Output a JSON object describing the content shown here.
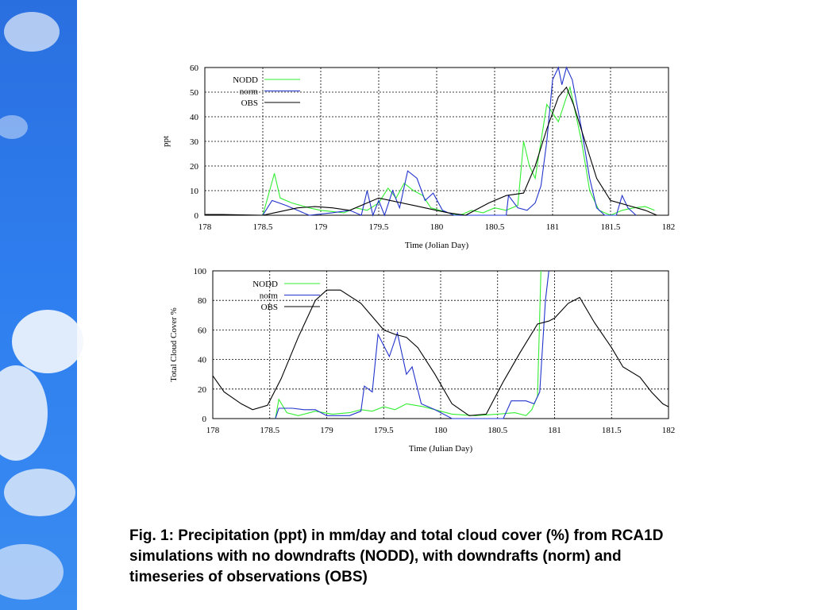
{
  "chart_data": [
    {
      "type": "line",
      "ylabel": "ppt",
      "xlabel": "Time (Jolian Day)",
      "xlim": [
        178,
        182
      ],
      "xticks": [
        178,
        178.5,
        179,
        179.5,
        180,
        180.5,
        181,
        181.5,
        182
      ],
      "ylim": [
        0,
        60
      ],
      "yticks": [
        0,
        10,
        20,
        30,
        40,
        50,
        60
      ],
      "grid": true,
      "legend": "upper left",
      "series": [
        {
          "name": "NODD",
          "color": "#33ee33",
          "x": [
            178.5,
            178.6,
            178.65,
            178.75,
            178.9,
            179.0,
            179.2,
            179.3,
            179.4,
            179.5,
            179.58,
            179.65,
            179.72,
            179.8,
            179.88,
            179.95,
            180.1,
            180.2,
            180.3,
            180.4,
            180.5,
            180.6,
            180.7,
            180.75,
            180.8,
            180.85,
            180.9,
            180.95,
            181.05,
            181.12,
            181.15,
            181.25,
            181.32,
            181.4,
            181.5,
            181.6,
            181.7,
            181.8,
            181.88
          ],
          "values": [
            0,
            17,
            7,
            5,
            3,
            2,
            1,
            3,
            2,
            5,
            11,
            7,
            13,
            10,
            8,
            3,
            1,
            0,
            2,
            1,
            3,
            2,
            4,
            30,
            20,
            15,
            30,
            45,
            38,
            48,
            52,
            30,
            10,
            2,
            0,
            2,
            3,
            3.5,
            2
          ]
        },
        {
          "name": "norm",
          "color": "#2233cc",
          "x": [
            178.5,
            178.58,
            178.7,
            178.8,
            178.9,
            179.1,
            179.25,
            179.35,
            179.4,
            179.45,
            179.5,
            179.55,
            179.62,
            179.68,
            179.75,
            179.83,
            179.9,
            179.97,
            180.05,
            180.15,
            180.6,
            180.62,
            180.7,
            180.78,
            180.85,
            180.9,
            180.95,
            181.0,
            181.05,
            181.08,
            181.12,
            181.17,
            181.25,
            181.32,
            181.38,
            181.45,
            181.55,
            181.6,
            181.65,
            181.72
          ],
          "values": [
            0,
            6,
            4,
            2,
            0,
            1,
            2,
            0,
            10,
            0,
            6,
            0,
            10,
            3,
            18,
            15,
            6,
            9,
            2,
            0,
            0,
            8,
            3,
            2,
            5,
            12,
            30,
            55,
            60,
            53,
            60,
            55,
            35,
            15,
            3,
            0,
            0,
            8,
            3,
            0
          ]
        },
        {
          "name": "OBS",
          "color": "#000000",
          "x": [
            178,
            178.15,
            178.5,
            178.6,
            178.8,
            178.95,
            179.1,
            179.25,
            179.4,
            179.5,
            179.6,
            179.8,
            179.95,
            180.1,
            180.25,
            180.45,
            180.6,
            180.75,
            180.85,
            180.95,
            181.05,
            181.12,
            181.18,
            181.28,
            181.38,
            181.5,
            181.65,
            181.8,
            181.9
          ],
          "values": [
            0.3,
            0.3,
            0,
            1,
            3,
            3.5,
            3,
            2,
            5,
            7,
            6,
            4,
            2.5,
            1,
            0,
            5,
            8,
            9,
            20,
            35,
            48,
            52,
            45,
            30,
            15,
            6,
            4,
            2,
            0
          ]
        }
      ]
    },
    {
      "type": "line",
      "ylabel": "Total Cloud Cover %",
      "xlabel": "Time (Julian Day)",
      "xlim": [
        178,
        182
      ],
      "xticks": [
        178,
        178.5,
        179,
        179.5,
        180,
        180.5,
        181,
        181.5,
        182
      ],
      "ylim": [
        0,
        100
      ],
      "yticks": [
        0,
        20,
        40,
        60,
        80,
        100
      ],
      "grid": true,
      "legend": "upper left",
      "series": [
        {
          "name": "NODD",
          "color": "#33ee33",
          "x": [
            178.55,
            178.58,
            178.65,
            178.75,
            178.9,
            179.05,
            179.2,
            179.3,
            179.4,
            179.5,
            179.6,
            179.7,
            179.85,
            179.95,
            180.1,
            180.3,
            180.5,
            180.65,
            180.75,
            180.8,
            180.85,
            180.88
          ],
          "values": [
            0,
            13,
            4,
            2,
            5,
            3,
            4,
            6,
            5,
            8,
            6,
            10,
            8,
            6,
            3,
            2,
            3,
            4,
            2,
            6,
            15,
            100
          ]
        },
        {
          "name": "norm",
          "color": "#2233cc",
          "x": [
            178.55,
            178.58,
            178.7,
            178.8,
            178.9,
            179.0,
            179.2,
            179.3,
            179.33,
            179.4,
            179.45,
            179.55,
            179.62,
            179.7,
            179.75,
            179.83,
            179.95,
            180.1,
            180.55,
            180.62,
            180.75,
            180.82,
            180.87,
            180.92,
            180.95
          ],
          "values": [
            0,
            7,
            7,
            6,
            6,
            2,
            2,
            5,
            22,
            18,
            57,
            42,
            58,
            30,
            35,
            10,
            6,
            0,
            0,
            12,
            12,
            10,
            18,
            80,
            100
          ]
        },
        {
          "name": "OBS",
          "color": "#000000",
          "x": [
            178,
            178.1,
            178.25,
            178.35,
            178.48,
            178.6,
            178.75,
            178.9,
            179.0,
            179.12,
            179.3,
            179.5,
            179.6,
            179.7,
            179.8,
            179.95,
            180.1,
            180.25,
            180.4,
            180.55,
            180.7,
            180.85,
            180.95,
            181.0,
            181.12,
            181.22,
            181.35,
            181.5,
            181.6,
            181.75,
            181.85,
            181.95,
            182.0
          ],
          "values": [
            29,
            18,
            10,
            6,
            9,
            27,
            55,
            80,
            87,
            87,
            78,
            60,
            57,
            55,
            48,
            30,
            10,
            2,
            3,
            25,
            45,
            64,
            66,
            68,
            78,
            82,
            65,
            48,
            35,
            28,
            18,
            10,
            8
          ]
        }
      ]
    }
  ],
  "caption": [
    "Fig. 1: Precipitation (ppt) in mm/day and total cloud cover (%) from RCA1D",
    "simulations with no downdrafts (NODD), with downdrafts (norm) and",
    "timeseries of observations (OBS)"
  ]
}
